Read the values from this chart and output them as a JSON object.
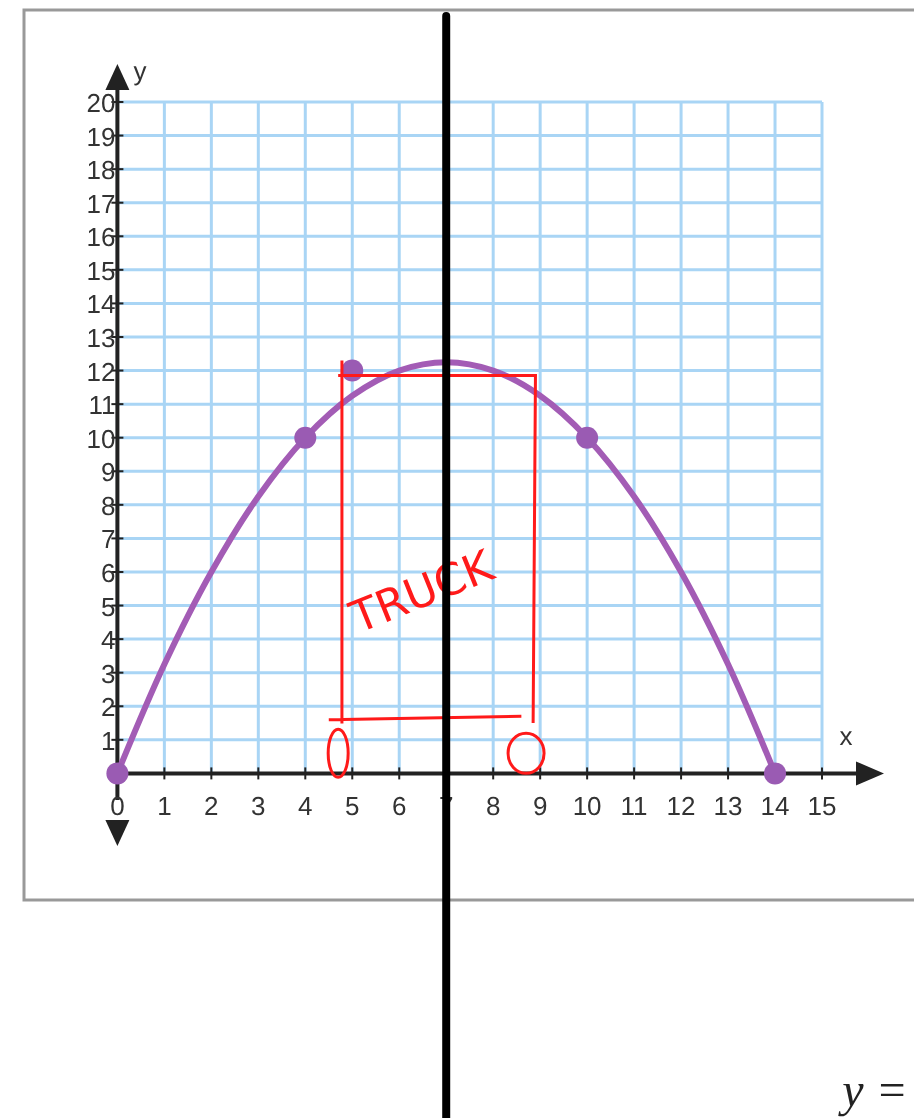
{
  "chart_data": {
    "type": "line",
    "xlabel": "x",
    "ylabel": "y",
    "xlim": [
      0,
      15
    ],
    "ylim": [
      0,
      20
    ],
    "xticks": [
      0,
      1,
      2,
      3,
      4,
      5,
      6,
      7,
      8,
      9,
      10,
      11,
      12,
      13,
      14,
      15
    ],
    "yticks": [
      1,
      2,
      3,
      4,
      5,
      6,
      7,
      8,
      9,
      10,
      11,
      12,
      13,
      14,
      15,
      16,
      17,
      18,
      19,
      20
    ],
    "grid": true,
    "series": [
      {
        "color": "#a35cb5",
        "marker": "none",
        "line_style": "solid",
        "x": [
          0,
          1,
          2,
          3,
          4,
          5,
          6,
          7,
          8,
          9,
          10,
          11,
          12,
          13,
          14
        ],
        "values": [
          0,
          3.25,
          6,
          8.25,
          10,
          11.25,
          12,
          12.25,
          12,
          11.25,
          10,
          8.25,
          6,
          3.25,
          0
        ]
      },
      {
        "type": "scatter",
        "color": "#9a5bb3",
        "marker": "circle",
        "x": [
          0,
          4,
          5,
          10,
          14
        ],
        "values": [
          0,
          10,
          12,
          10,
          0
        ]
      }
    ],
    "ref_lines": [
      {
        "axis": "x",
        "value": 7,
        "color": "#000000"
      }
    ],
    "annotations": [
      "TRUCK",
      "y ="
    ]
  }
}
